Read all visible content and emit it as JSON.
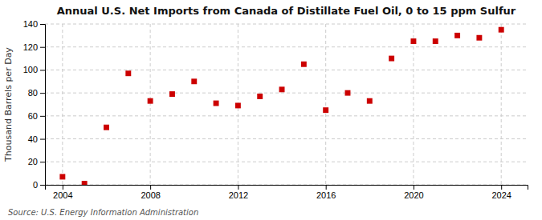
{
  "chart_data": {
    "type": "scatter",
    "title": "Annual U.S. Net Imports from Canada of Distillate Fuel Oil, 0 to 15 ppm Sulfur",
    "ylabel": "Thousand Barrels per Day",
    "source": "Source: U.S. Energy Information Administration",
    "x": [
      2004,
      2005,
      2006,
      2007,
      2008,
      2009,
      2010,
      2011,
      2012,
      2013,
      2014,
      2015,
      2016,
      2017,
      2018,
      2019,
      2020,
      2021,
      2022,
      2023,
      2024
    ],
    "values": [
      7,
      1,
      50,
      97,
      73,
      79,
      90,
      71,
      69,
      77,
      83,
      105,
      65,
      80,
      73,
      110,
      125,
      125,
      130,
      128,
      135
    ],
    "color": "#cc0000",
    "marker": "square",
    "xlim": [
      2003.2,
      2025.2
    ],
    "ylim": [
      0,
      140
    ],
    "xticks": [
      2004,
      2008,
      2012,
      2016,
      2020,
      2024
    ],
    "yticks": [
      0,
      20,
      40,
      60,
      80,
      100,
      120,
      140
    ],
    "grid": true
  }
}
